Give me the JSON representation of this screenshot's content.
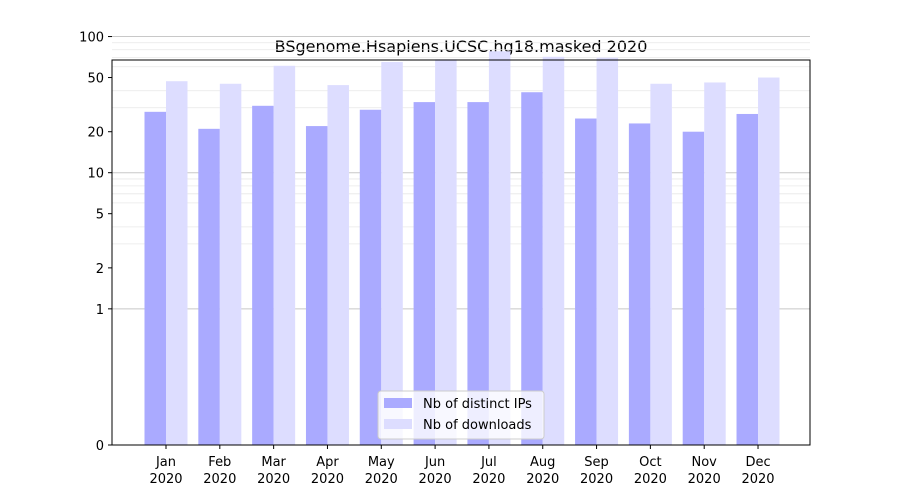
{
  "chart_data": {
    "type": "bar",
    "title": "BSgenome.Hsapiens.UCSC.hg18.masked 2020",
    "xlabel": "",
    "ylabel": "",
    "y_scale": "symlog",
    "y_ticks": [
      0,
      1,
      2,
      5,
      10,
      20,
      50,
      100
    ],
    "ylim": [
      0,
      120
    ],
    "categories": [
      [
        "Jan",
        "2020"
      ],
      [
        "Feb",
        "2020"
      ],
      [
        "Mar",
        "2020"
      ],
      [
        "Apr",
        "2020"
      ],
      [
        "May",
        "2020"
      ],
      [
        "Jun",
        "2020"
      ],
      [
        "Jul",
        "2020"
      ],
      [
        "Aug",
        "2020"
      ],
      [
        "Sep",
        "2020"
      ],
      [
        "Oct",
        "2020"
      ],
      [
        "Nov",
        "2020"
      ],
      [
        "Dec",
        "2020"
      ]
    ],
    "series": [
      {
        "name": "Nb of distinct IPs",
        "color": "#aaaaff",
        "values": [
          28,
          21,
          31,
          22,
          29,
          33,
          33,
          39,
          25,
          23,
          20,
          27
        ]
      },
      {
        "name": "Nb of downloads",
        "color": "#ddddff",
        "values": [
          47,
          45,
          61,
          44,
          65,
          68,
          78,
          71,
          70,
          45,
          46,
          50
        ]
      }
    ],
    "legend_position": "lower-center",
    "grid": true
  }
}
